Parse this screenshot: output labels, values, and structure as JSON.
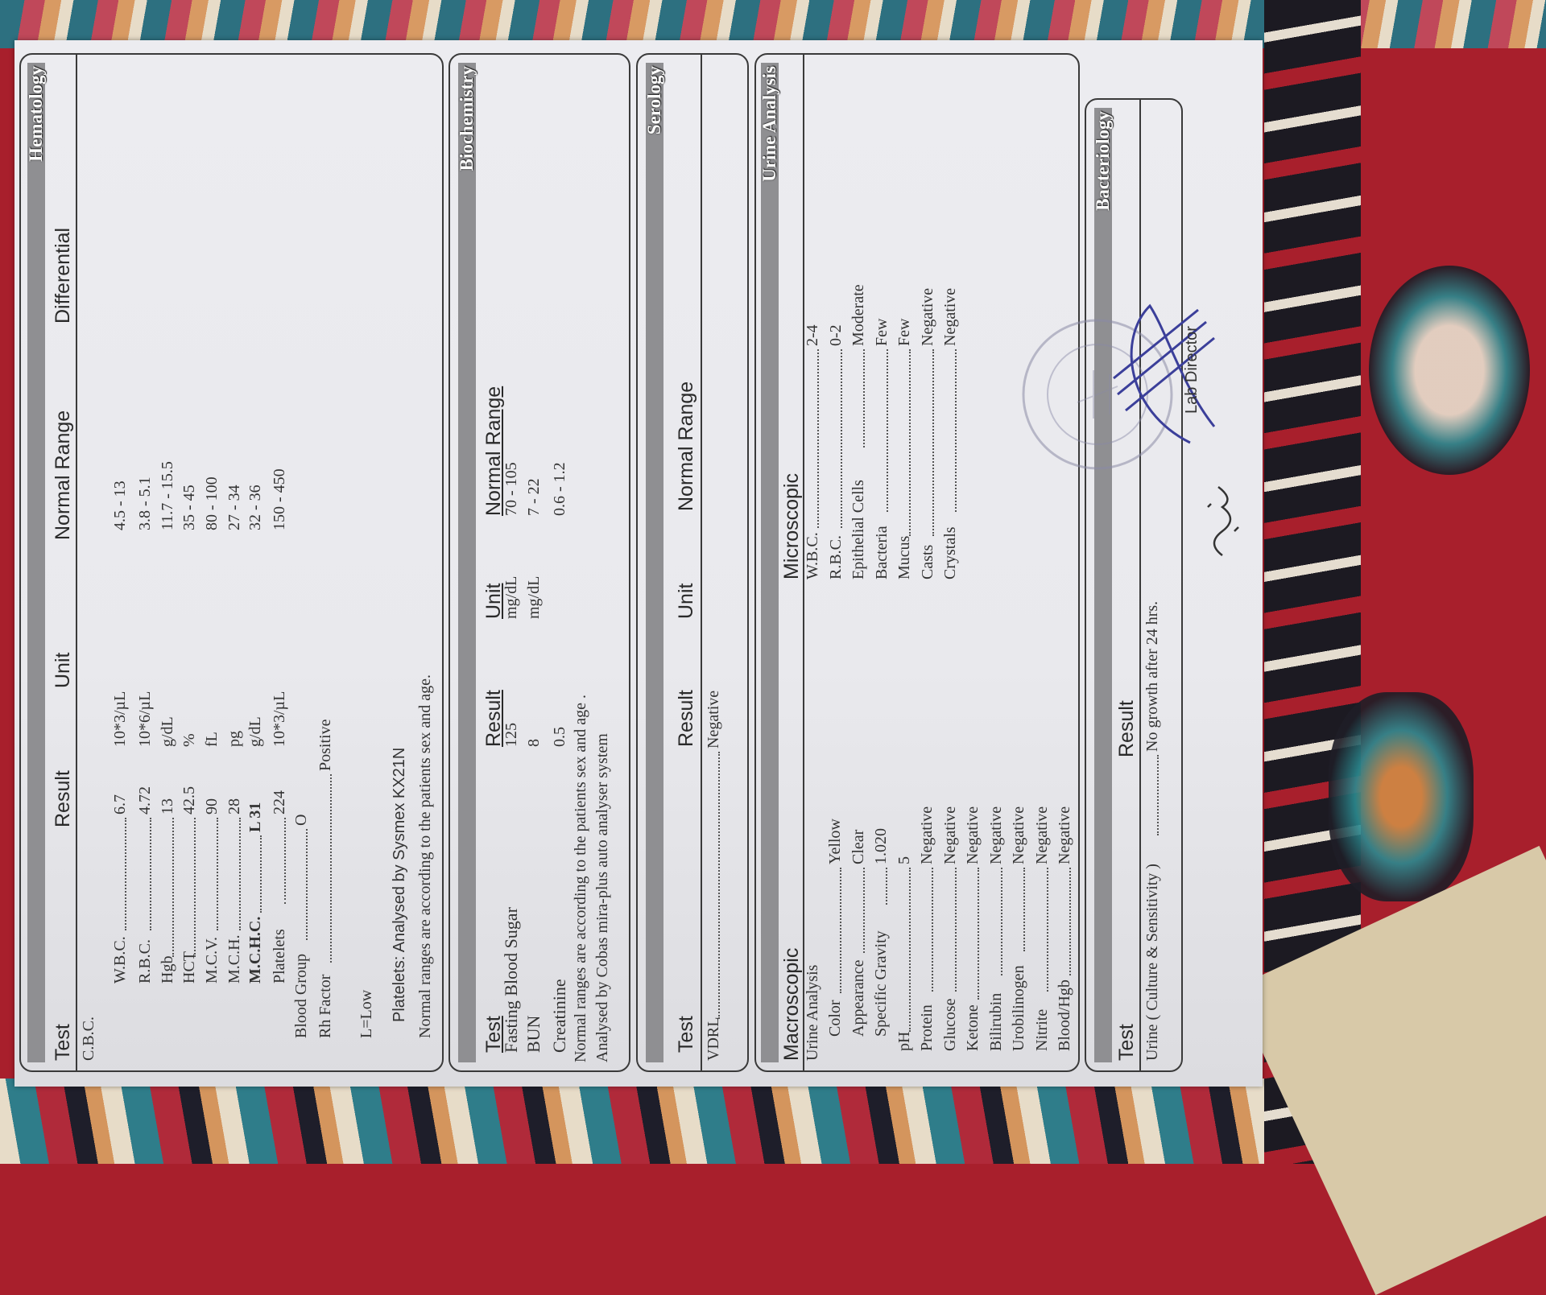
{
  "hematology": {
    "title": "Hematology",
    "headers": {
      "test": "Test",
      "result": "Result",
      "unit": "Unit",
      "normal_range": "Normal Range",
      "differential": "Differential"
    },
    "group": "C.B.C.",
    "rows": [
      {
        "test": "W.B.C.",
        "result": "6.7",
        "unit": "10*3/µL",
        "range": "4.5 - 13"
      },
      {
        "test": "R.B.C.",
        "result": "4.72",
        "unit": "10*6/µL",
        "range": "3.8 - 5.1"
      },
      {
        "test": "Hgb",
        "result": "13",
        "unit": "g/dL",
        "range": "11.7 - 15.5"
      },
      {
        "test": "HCT",
        "result": "42.5",
        "unit": "%",
        "range": "35 - 45"
      },
      {
        "test": "M.C.V.",
        "result": "90",
        "unit": "fL",
        "range": "80 - 100"
      },
      {
        "test": "M.C.H.",
        "result": "28",
        "unit": "pg",
        "range": "27 - 34"
      },
      {
        "test": "M.C.H.C.",
        "result": "L 31",
        "unit": "g/dL",
        "range": "32 - 36",
        "flag": "low"
      },
      {
        "test": "Platelets",
        "result": "224",
        "unit": "10*3/µL",
        "range": "150 - 450"
      }
    ],
    "blood_group": {
      "test": "Blood Group",
      "result": "O"
    },
    "rh_factor": {
      "test": "Rh Factor",
      "result": "Positive"
    },
    "legend": "L=Low",
    "platelets_note": "Platelets: Analysed by Sysmex KX21N",
    "ranges_note": "Normal ranges are according to the patients sex and age."
  },
  "biochemistry": {
    "title": "Biochemistry",
    "headers": {
      "test": "Test",
      "result": "Result",
      "unit": "Unit",
      "normal_range": "Normal Range"
    },
    "rows": [
      {
        "test": "Fasting Blood Sugar",
        "result": "125",
        "unit": "mg/dL",
        "range": "70 - 105"
      },
      {
        "test": "BUN",
        "result": "8",
        "unit": "mg/dL",
        "range": "7 - 22"
      },
      {
        "test": "Creatinine",
        "result": "0.5",
        "unit": "",
        "range": "0.6 - 1.2"
      }
    ],
    "note1": "Normal ranges are according to the patients sex and age .",
    "note2": "Analysed by Cobas mira-plus auto analyser system"
  },
  "serology": {
    "title": "Serology",
    "headers": {
      "test": "Test",
      "result": "Result",
      "unit": "Unit",
      "normal_range": "Normal Range"
    },
    "rows": [
      {
        "test": "VDRL",
        "result": "Negative"
      }
    ]
  },
  "urine_analysis": {
    "title": "Urine Analysis",
    "macroscopic": {
      "header": "Macroscopic",
      "group": "Urine Analysis",
      "rows": [
        {
          "test": "Color",
          "result": "Yellow"
        },
        {
          "test": "Appearance",
          "result": "Clear"
        },
        {
          "test": "Specific Gravity",
          "result": "1.020"
        },
        {
          "test": "pH",
          "result": "5"
        },
        {
          "test": "Protein",
          "result": "Negative"
        },
        {
          "test": "Glucose",
          "result": "Negative"
        },
        {
          "test": "Ketone",
          "result": "Negative"
        },
        {
          "test": "Bilirubin",
          "result": "Negative"
        },
        {
          "test": "Urobilinogen",
          "result": "Negative"
        },
        {
          "test": "Nitrite",
          "result": "Negative"
        },
        {
          "test": "Blood/Hgb",
          "result": "Negative"
        }
      ]
    },
    "microscopic": {
      "header": "Microscopic",
      "rows": [
        {
          "test": "W.B.C.",
          "result": "2-4"
        },
        {
          "test": "R.B.C.",
          "result": "0-2"
        },
        {
          "test": "Epithelial Cells",
          "result": "Moderate"
        },
        {
          "test": "Bacteria",
          "result": "Few"
        },
        {
          "test": "Mucus",
          "result": "Few"
        },
        {
          "test": "Casts",
          "result": "Negative"
        },
        {
          "test": "Crystals",
          "result": "Negative"
        }
      ]
    }
  },
  "bacteriology": {
    "title": "Bacteriology",
    "headers": {
      "test": "Test",
      "result": "Result"
    },
    "rows": [
      {
        "test": "Urine ( Culture & Sensitivity )",
        "result": "No growth after 24 hrs."
      }
    ]
  },
  "signature": {
    "label": "Lab Director"
  },
  "colors": {
    "section_bar": "#8f8f92",
    "paper": "#e9e9ed",
    "carpet_red": "#a81f2c",
    "ink_blue": "#3b3f9a"
  }
}
